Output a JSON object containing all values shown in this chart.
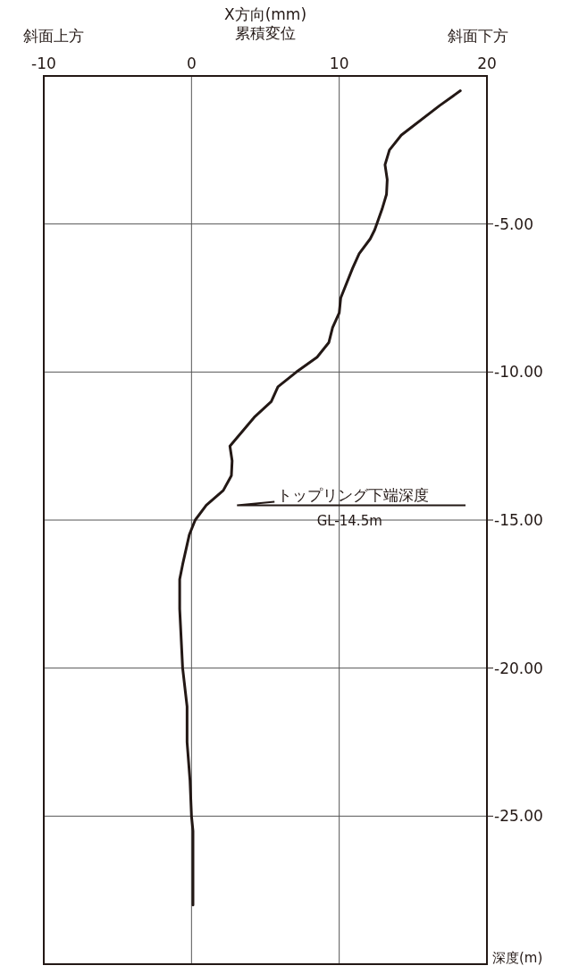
{
  "chart_data": {
    "type": "line",
    "xlabel": "X方向(mm)\n累積変位",
    "ylabel": "深度(m)",
    "xlim": [
      -10,
      20
    ],
    "xticks": [
      -10,
      0,
      10,
      20
    ],
    "ylim": [
      -30,
      0
    ],
    "yticks": [
      {
        "value": -5,
        "label": "-5.00"
      },
      {
        "value": -10,
        "label": "-10.00"
      },
      {
        "value": -15,
        "label": "-15.00"
      },
      {
        "value": -20,
        "label": "-20.00"
      },
      {
        "value": -25,
        "label": "-25.00"
      }
    ],
    "grid": true,
    "marker": "none",
    "line_style": "solid",
    "ref_lines": [
      {
        "axis": "y",
        "value": -14.5,
        "label": "トップリング下端深度",
        "color": "#231815"
      }
    ],
    "series": [
      {
        "color": "#231815",
        "x": [
          18.2,
          16.8,
          14.2,
          13.4,
          13.1,
          13.25,
          13.2,
          12.9,
          12.4,
          12.1,
          11.35,
          10.9,
          10.1,
          10.0,
          9.55,
          9.3,
          8.5,
          7.1,
          5.85,
          5.4,
          4.3,
          2.6,
          2.75,
          2.7,
          2.15,
          1.0,
          0.25,
          -0.15,
          -0.6,
          -0.8,
          -0.8,
          -0.6,
          -0.3,
          -0.3,
          -0.1,
          0.0,
          0.1,
          0.1
        ],
        "values": [
          -0.5,
          -1.0,
          -2.0,
          -2.5,
          -3.0,
          -3.5,
          -4.0,
          -4.5,
          -5.2,
          -5.5,
          -6.0,
          -6.5,
          -7.5,
          -8.0,
          -8.5,
          -9.0,
          -9.5,
          -10.0,
          -10.5,
          -11.0,
          -11.5,
          -12.5,
          -13.0,
          -13.5,
          -14.0,
          -14.5,
          -15.0,
          -15.5,
          -16.5,
          -17.0,
          -18.0,
          -20.0,
          -21.3,
          -22.5,
          -23.8,
          -25.0,
          -25.5,
          -28.0
        ]
      }
    ],
    "annotations": [
      "斜面上方",
      "斜面下方",
      "GL-14.5m"
    ]
  }
}
